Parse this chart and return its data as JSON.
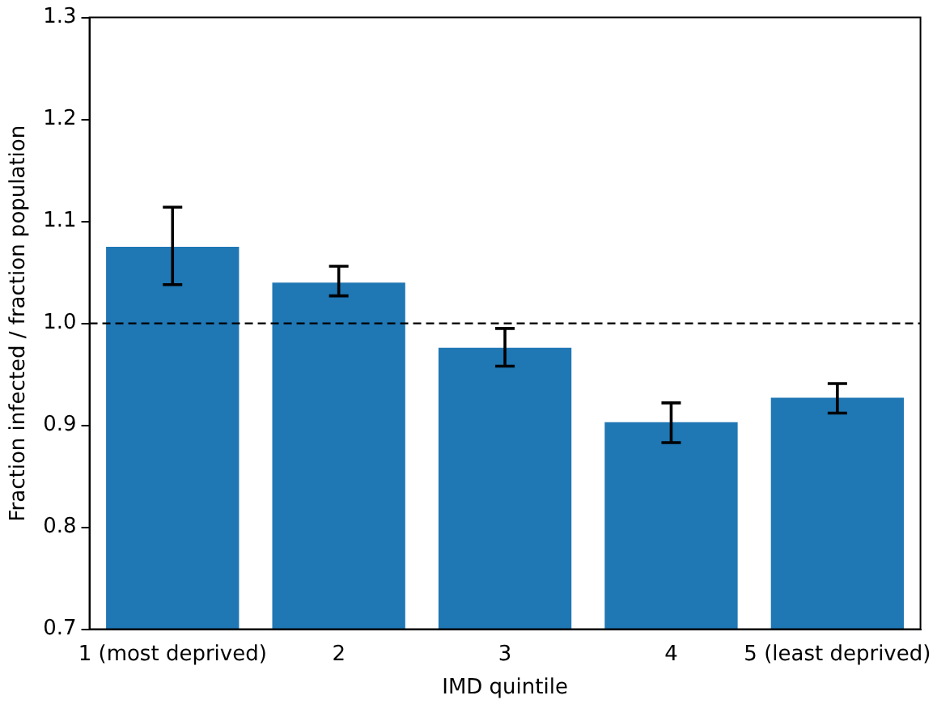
{
  "chart_data": {
    "type": "bar",
    "xlabel": "IMD quintile",
    "ylabel": "Fraction infected / fraction population",
    "categories": [
      "1 (most deprived)",
      "2",
      "3",
      "4",
      "5 (least deprived)"
    ],
    "values": [
      1.075,
      1.04,
      0.976,
      0.903,
      0.927
    ],
    "color": "#1f77b4",
    "errors": [
      [
        1.038,
        1.114
      ],
      [
        1.027,
        1.056
      ],
      [
        0.958,
        0.995
      ],
      [
        0.883,
        0.922
      ],
      [
        0.912,
        0.941
      ]
    ],
    "ylim": [
      0.7,
      1.3
    ],
    "yticks": [
      0.7,
      0.8,
      0.9,
      {
        "value": 1,
        "label": "1.0"
      },
      1.1,
      1.2,
      1.3
    ],
    "grid": false,
    "legend": false,
    "ref_lines": [
      {
        "axis": "y",
        "value": 1.0,
        "color": "#000000",
        "line_style": "dashed"
      }
    ]
  }
}
